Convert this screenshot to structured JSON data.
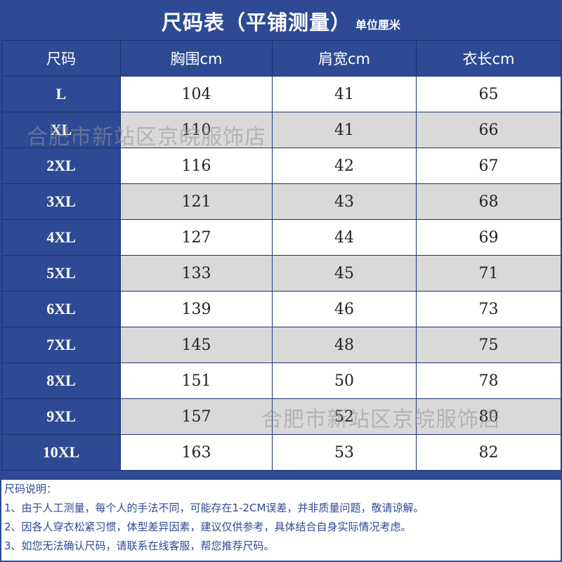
{
  "title": {
    "main": "尺码表（平铺测量）",
    "unit": "单位厘米"
  },
  "columns": [
    "尺码",
    "胸围cm",
    "肩宽cm",
    "衣长cm"
  ],
  "rows": [
    {
      "size": "L",
      "chest": "104",
      "shoulder": "41",
      "length": "65"
    },
    {
      "size": "XL",
      "chest": "110",
      "shoulder": "41",
      "length": "66"
    },
    {
      "size": "2XL",
      "chest": "116",
      "shoulder": "42",
      "length": "67"
    },
    {
      "size": "3XL",
      "chest": "121",
      "shoulder": "43",
      "length": "68"
    },
    {
      "size": "4XL",
      "chest": "127",
      "shoulder": "44",
      "length": "69"
    },
    {
      "size": "5XL",
      "chest": "133",
      "shoulder": "45",
      "length": "71"
    },
    {
      "size": "6XL",
      "chest": "139",
      "shoulder": "46",
      "length": "73"
    },
    {
      "size": "7XL",
      "chest": "145",
      "shoulder": "48",
      "length": "75"
    },
    {
      "size": "8XL",
      "chest": "151",
      "shoulder": "50",
      "length": "78"
    },
    {
      "size": "9XL",
      "chest": "157",
      "shoulder": "52",
      "length": "80"
    },
    {
      "size": "10XL",
      "chest": "163",
      "shoulder": "53",
      "length": "82"
    }
  ],
  "notes": {
    "heading": "尺码说明：",
    "lines": [
      "1、由于人工测量，每个人的手法不同，可能存在1-2CM误差，并非质量问题，敬请谅解。",
      "2、因各人穿衣松紧习惯，体型差异因素，建议仅供参考，具体结合自身实际情况考虑。",
      "3、如您无法确认尺码，请联系在线客服，帮您推荐尺码。"
    ]
  },
  "watermark": "合肥市新站区京皖服饰店",
  "colors": {
    "header_blue": "#2e4a94",
    "stripe_gray": "#d9d9d9",
    "note_text": "#2e4a94"
  }
}
